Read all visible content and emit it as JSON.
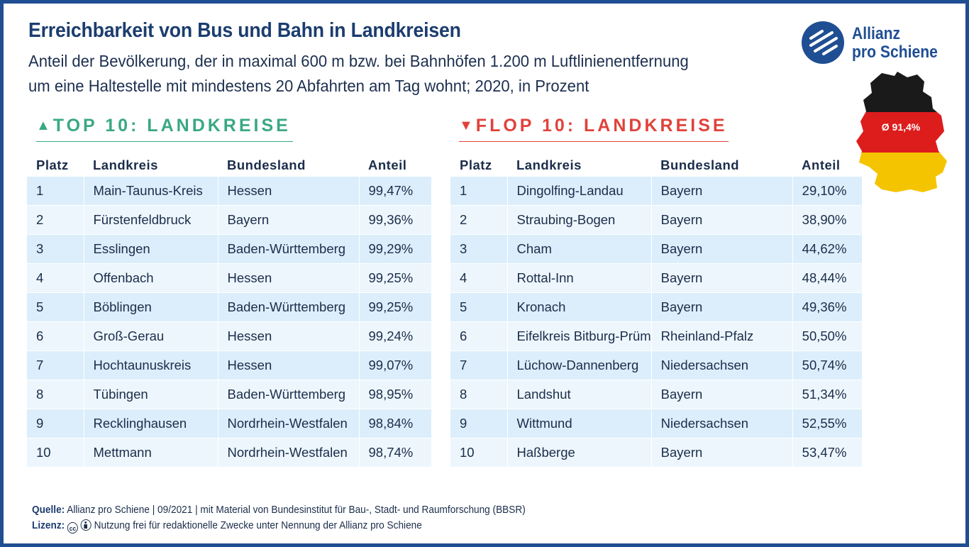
{
  "header": {
    "title": "Erreichbarkeit von Bus und Bahn in Landkreisen",
    "subtitle_line1": "Anteil der Bevölkerung, der in maximal 600 m bzw. bei Bahnhöfen 1.200 m Luftlinienentfernung",
    "subtitle_line2": "um eine Haltestelle mit mindestens 20 Abfahrten am Tag wohnt; 2020, in Prozent"
  },
  "logo": {
    "line1": "Allianz",
    "line2": "pro Schiene",
    "color": "#1f4e93"
  },
  "map": {
    "average": "Ø 91,4%",
    "colors": [
      "#1a1a1a",
      "#dd1c1c",
      "#f5c400"
    ]
  },
  "top": {
    "heading": "TOP 10: LANDKREISE",
    "icon": "arrow-up-icon",
    "color": "#3aa883",
    "columns": [
      "Platz",
      "Landkreis",
      "Bundesland",
      "Anteil"
    ],
    "rows": [
      [
        "1",
        "Main-Taunus-Kreis",
        "Hessen",
        "99,47%"
      ],
      [
        "2",
        "Fürstenfeldbruck",
        "Bayern",
        "99,36%"
      ],
      [
        "3",
        "Esslingen",
        "Baden-Württemberg",
        "99,29%"
      ],
      [
        "4",
        "Offenbach",
        "Hessen",
        "99,25%"
      ],
      [
        "5",
        "Böblingen",
        "Baden-Württemberg",
        "99,25%"
      ],
      [
        "6",
        "Groß-Gerau",
        "Hessen",
        "99,24%"
      ],
      [
        "7",
        "Hochtaunuskreis",
        "Hessen",
        "99,07%"
      ],
      [
        "8",
        "Tübingen",
        "Baden-Württemberg",
        "98,95%"
      ],
      [
        "9",
        "Recklinghausen",
        "Nordrhein-Westfalen",
        "98,84%"
      ],
      [
        "10",
        "Mettmann",
        "Nordrhein-Westfalen",
        "98,74%"
      ]
    ]
  },
  "flop": {
    "heading": "FLOP 10: LANDKREISE",
    "icon": "arrow-down-icon",
    "color": "#e0423a",
    "columns": [
      "Platz",
      "Landkreis",
      "Bundesland",
      "Anteil"
    ],
    "rows": [
      [
        "1",
        "Dingolfing-Landau",
        "Bayern",
        "29,10%"
      ],
      [
        "2",
        "Straubing-Bogen",
        "Bayern",
        "38,90%"
      ],
      [
        "3",
        "Cham",
        "Bayern",
        "44,62%"
      ],
      [
        "4",
        "Rottal-Inn",
        "Bayern",
        "48,44%"
      ],
      [
        "5",
        "Kronach",
        "Bayern",
        "49,36%"
      ],
      [
        "6",
        "Eifelkreis Bitburg-Prüm",
        "Rheinland-Pfalz",
        "50,50%"
      ],
      [
        "7",
        "Lüchow-Dannenberg",
        "Niedersachsen",
        "50,74%"
      ],
      [
        "8",
        "Landshut",
        "Bayern",
        "51,34%"
      ],
      [
        "9",
        "Wittmund",
        "Niedersachsen",
        "52,55%"
      ],
      [
        "10",
        "Haßberge",
        "Bayern",
        "53,47%"
      ]
    ]
  },
  "footer": {
    "source_label": "Quelle:",
    "source_text": "Allianz pro Schiene | 09/2021 | mit Material von Bundesinstitut für Bau-, Stadt- und Raumforschung (BBSR)",
    "license_label": "Lizenz:",
    "license_cc": "cc",
    "license_text": "Nutzung frei für redaktionelle Zwecke unter Nennung der Allianz pro Schiene"
  },
  "chart_data": [
    {
      "type": "table",
      "title": "TOP 10: LANDKREISE",
      "columns": [
        "Platz",
        "Landkreis",
        "Bundesland",
        "Anteil"
      ],
      "rows": [
        [
          1,
          "Main-Taunus-Kreis",
          "Hessen",
          99.47
        ],
        [
          2,
          "Fürstenfeldbruck",
          "Bayern",
          99.36
        ],
        [
          3,
          "Esslingen",
          "Baden-Württemberg",
          99.29
        ],
        [
          4,
          "Offenbach",
          "Hessen",
          99.25
        ],
        [
          5,
          "Böblingen",
          "Baden-Württemberg",
          99.25
        ],
        [
          6,
          "Groß-Gerau",
          "Hessen",
          99.24
        ],
        [
          7,
          "Hochtaunuskreis",
          "Hessen",
          99.07
        ],
        [
          8,
          "Tübingen",
          "Baden-Württemberg",
          98.95
        ],
        [
          9,
          "Recklinghausen",
          "Nordrhein-Westfalen",
          98.84
        ],
        [
          10,
          "Mettmann",
          "Nordrhein-Westfalen",
          98.74
        ]
      ]
    },
    {
      "type": "table",
      "title": "FLOP 10: LANDKREISE",
      "columns": [
        "Platz",
        "Landkreis",
        "Bundesland",
        "Anteil"
      ],
      "rows": [
        [
          1,
          "Dingolfing-Landau",
          "Bayern",
          29.1
        ],
        [
          2,
          "Straubing-Bogen",
          "Bayern",
          38.9
        ],
        [
          3,
          "Cham",
          "Bayern",
          44.62
        ],
        [
          4,
          "Rottal-Inn",
          "Bayern",
          48.44
        ],
        [
          5,
          "Kronach",
          "Bayern",
          49.36
        ],
        [
          6,
          "Eifelkreis Bitburg-Prüm",
          "Rheinland-Pfalz",
          50.5
        ],
        [
          7,
          "Lüchow-Dannenberg",
          "Niedersachsen",
          50.74
        ],
        [
          8,
          "Landshut",
          "Bayern",
          51.34
        ],
        [
          9,
          "Wittmund",
          "Niedersachsen",
          52.55
        ],
        [
          10,
          "Haßberge",
          "Bayern",
          53.47
        ]
      ]
    }
  ]
}
